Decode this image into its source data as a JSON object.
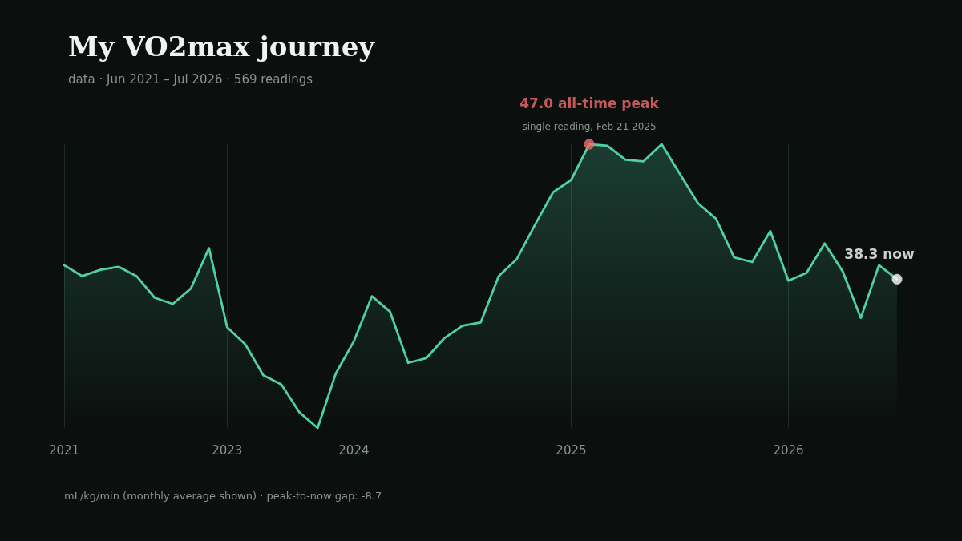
{
  "chart_data": {
    "type": "area",
    "title": "My VO2max journey",
    "subtitle": "data · Jun 2021 – Jul 2026 · 569 readings",
    "categories": [
      "2021",
      null,
      null,
      null,
      null,
      null,
      null,
      null,
      null,
      "2023",
      null,
      null,
      null,
      null,
      null,
      null,
      "2024",
      null,
      null,
      null,
      null,
      null,
      null,
      null,
      null,
      null,
      null,
      null,
      "2025",
      null,
      null,
      null,
      null,
      null,
      null,
      null,
      null,
      null,
      null,
      null,
      "2026",
      null,
      null,
      null,
      null,
      null,
      null
    ],
    "series": [
      {
        "color": "#4fd1a5",
        "values": [
          39.2,
          38.5,
          38.9,
          39.1,
          38.5,
          37.1,
          36.7,
          37.7,
          40.3,
          35.2,
          34.1,
          32.1,
          31.5,
          29.7,
          28.7,
          32.2,
          34.3,
          37.2,
          36.2,
          32.9,
          33.2,
          34.5,
          35.3,
          35.5,
          38.5,
          39.6,
          41.8,
          43.9,
          44.7,
          47.0,
          46.9,
          46.0,
          45.9,
          47.0,
          45.1,
          43.2,
          42.2,
          39.7,
          39.4,
          41.4,
          38.2,
          38.7,
          40.6,
          38.8,
          35.8,
          39.2,
          38.3
        ]
      },
      {
        "type": "scatter",
        "marker": "circle",
        "color": "#f26b6b",
        "values": [
          null,
          null,
          null,
          null,
          null,
          null,
          null,
          null,
          null,
          null,
          null,
          null,
          null,
          null,
          null,
          null,
          null,
          null,
          null,
          null,
          null,
          null,
          null,
          null,
          null,
          null,
          null,
          null,
          null,
          47.0,
          null,
          null,
          null,
          null,
          null,
          null,
          null,
          null,
          null,
          null,
          null,
          null,
          null,
          null,
          null,
          null,
          null
        ],
        "value_labels": [
          null,
          null,
          null,
          null,
          null,
          null,
          null,
          null,
          null,
          null,
          null,
          null,
          null,
          null,
          null,
          null,
          null,
          null,
          null,
          null,
          null,
          null,
          null,
          null,
          null,
          null,
          null,
          null,
          null,
          "47.0 all-time peak",
          null,
          null,
          null,
          null,
          null,
          null,
          null,
          null,
          null,
          null,
          null,
          null,
          null,
          null,
          null,
          null,
          null
        ]
      },
      {
        "type": "scatter",
        "marker": "circle",
        "color": "#ffffff",
        "values": [
          null,
          null,
          null,
          null,
          null,
          null,
          null,
          null,
          null,
          null,
          null,
          null,
          null,
          null,
          null,
          null,
          null,
          null,
          null,
          null,
          null,
          null,
          null,
          null,
          null,
          null,
          null,
          null,
          null,
          null,
          null,
          null,
          null,
          null,
          null,
          null,
          null,
          null,
          null,
          null,
          null,
          null,
          null,
          null,
          null,
          null,
          38.3
        ],
        "value_labels": [
          null,
          null,
          null,
          null,
          null,
          null,
          null,
          null,
          null,
          null,
          null,
          null,
          null,
          null,
          null,
          null,
          null,
          null,
          null,
          null,
          null,
          null,
          null,
          null,
          null,
          null,
          null,
          null,
          null,
          null,
          null,
          null,
          null,
          null,
          null,
          null,
          null,
          null,
          null,
          null,
          null,
          null,
          null,
          null,
          null,
          null,
          "38.3 now"
        ]
      }
    ],
    "tick_labels": "x",
    "ref_lines": [
      {
        "axis": "x",
        "value": "2021",
        "color": "#1f2b27"
      },
      {
        "axis": "x",
        "value": "2023",
        "color": "#1f2b27"
      },
      {
        "axis": "x",
        "value": "2024",
        "color": "#1f2b27"
      },
      {
        "axis": "x",
        "value": "2025",
        "color": "#1f2b27"
      },
      {
        "axis": "x",
        "value": "2026",
        "color": "#1f2b27"
      }
    ],
    "marker": "none",
    "line_style": "solid",
    "annotations": [
      "single reading, Feb 21 2025",
      "mL/kg/min (monthly average shown) · peak-to-now gap: -8.7"
    ]
  }
}
